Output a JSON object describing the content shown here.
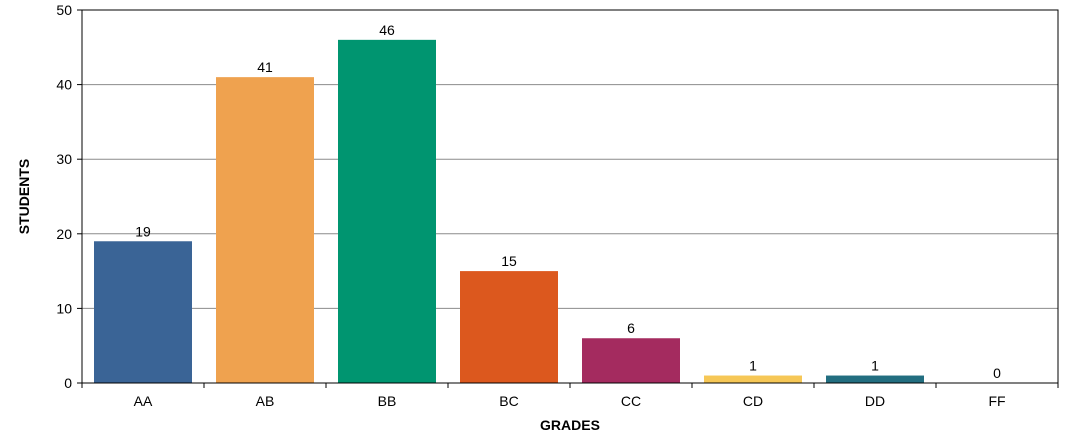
{
  "chart_data": {
    "type": "bar",
    "title": "",
    "xlabel": "GRADES",
    "ylabel": "STUDENTS",
    "categories": [
      "AA",
      "AB",
      "BB",
      "BC",
      "CC",
      "CD",
      "DD",
      "FF"
    ],
    "values": [
      19,
      41,
      46,
      15,
      6,
      1,
      1,
      0
    ],
    "value_labels": [
      "19",
      "41",
      "46",
      "15",
      "6",
      "1",
      "1",
      "0"
    ],
    "colors": [
      "#3A6496",
      "#EFA24F",
      "#009570",
      "#DC581E",
      "#A42B5F",
      "#F6C756",
      "#226E80",
      "#444444"
    ],
    "ylim": [
      0,
      50
    ],
    "yticks": [
      0,
      10,
      20,
      30,
      40,
      50
    ],
    "ytick_labels": [
      "0",
      "10",
      "20",
      "30",
      "40",
      "50"
    ],
    "grid": true,
    "legend": "none"
  }
}
